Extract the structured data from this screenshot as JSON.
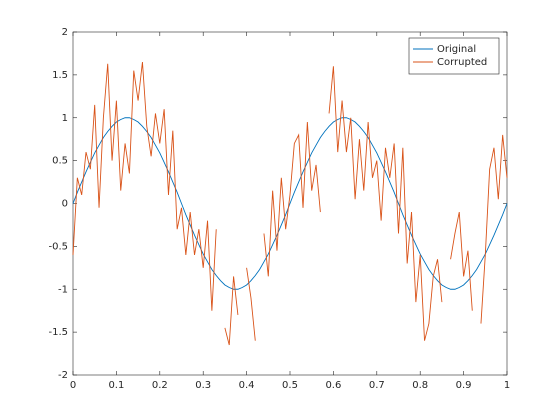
{
  "chart_data": {
    "type": "line",
    "x": [
      0,
      0.01,
      0.02,
      0.03,
      0.04,
      0.05,
      0.06,
      0.07,
      0.08,
      0.09,
      0.1,
      0.11,
      0.12,
      0.13,
      0.14,
      0.15,
      0.16,
      0.17,
      0.18,
      0.19,
      0.2,
      0.21,
      0.22,
      0.23,
      0.24,
      0.25,
      0.26,
      0.27,
      0.28,
      0.29,
      0.3,
      0.31,
      0.32,
      0.33,
      0.34,
      0.35,
      0.36,
      0.37,
      0.38,
      0.39,
      0.4,
      0.41,
      0.42,
      0.43,
      0.44,
      0.45,
      0.46,
      0.47,
      0.48,
      0.49,
      0.5,
      0.51,
      0.52,
      0.53,
      0.54,
      0.55,
      0.56,
      0.57,
      0.58,
      0.59,
      0.6,
      0.61,
      0.62,
      0.63,
      0.64,
      0.65,
      0.66,
      0.67,
      0.68,
      0.69,
      0.7,
      0.71,
      0.72,
      0.73,
      0.74,
      0.75,
      0.76,
      0.77,
      0.78,
      0.79,
      0.8,
      0.81,
      0.82,
      0.83,
      0.84,
      0.85,
      0.86,
      0.87,
      0.88,
      0.89,
      0.9,
      0.91,
      0.92,
      0.93,
      0.94,
      0.95,
      0.96,
      0.97,
      0.98,
      0.99,
      1
    ],
    "series": [
      {
        "name": "Original",
        "color": "#0072bd",
        "values": [
          0,
          0.13,
          0.25,
          0.37,
          0.48,
          0.59,
          0.68,
          0.77,
          0.84,
          0.9,
          0.95,
          0.98,
          1,
          1,
          0.98,
          0.95,
          0.9,
          0.84,
          0.77,
          0.68,
          0.59,
          0.48,
          0.37,
          0.25,
          0.13,
          0,
          -0.13,
          -0.25,
          -0.37,
          -0.48,
          -0.59,
          -0.68,
          -0.77,
          -0.84,
          -0.9,
          -0.95,
          -0.98,
          -1,
          -1,
          -0.98,
          -0.95,
          -0.9,
          -0.84,
          -0.77,
          -0.68,
          -0.59,
          -0.48,
          -0.37,
          -0.25,
          -0.13,
          0,
          0.13,
          0.25,
          0.37,
          0.48,
          0.59,
          0.68,
          0.77,
          0.84,
          0.9,
          0.95,
          0.98,
          1,
          1,
          0.98,
          0.95,
          0.9,
          0.84,
          0.77,
          0.68,
          0.59,
          0.48,
          0.37,
          0.25,
          0.13,
          0,
          -0.13,
          -0.25,
          -0.37,
          -0.48,
          -0.59,
          -0.68,
          -0.77,
          -0.84,
          -0.9,
          -0.95,
          -0.98,
          -1,
          -1,
          -0.98,
          -0.95,
          -0.9,
          -0.84,
          -0.77,
          -0.68,
          -0.59,
          -0.48,
          -0.37,
          -0.25,
          -0.13,
          0
        ]
      },
      {
        "name": "Corrupted",
        "color": "#d95319",
        "values": [
          -0.6,
          0.3,
          0.1,
          0.6,
          0.4,
          1.15,
          -0.05,
          1.0,
          1.63,
          0.5,
          1.2,
          0.15,
          0.7,
          0.35,
          1.55,
          1.2,
          1.65,
          0.9,
          0.55,
          1.05,
          0.7,
          1.1,
          0.1,
          0.85,
          -0.3,
          -0.05,
          -0.6,
          -0.1,
          -0.6,
          -0.3,
          -0.75,
          -0.2,
          -1.25,
          -0.3,
          null,
          -1.45,
          -1.65,
          -0.85,
          -1.3,
          null,
          -0.75,
          -1.1,
          -1.6,
          null,
          -0.35,
          -0.85,
          0.15,
          -0.55,
          0.3,
          -0.3,
          0.1,
          0.7,
          0.8,
          -0.05,
          0.95,
          0.15,
          0.45,
          -0.1,
          null,
          1.05,
          1.6,
          0.6,
          1.2,
          0.6,
          1.0,
          0.05,
          0.75,
          0.15,
          0.95,
          0.3,
          0.5,
          -0.2,
          0.65,
          0.3,
          0.7,
          -0.35,
          0.65,
          -0.7,
          -0.1,
          -1.15,
          -0.6,
          -1.6,
          -1.4,
          -0.85,
          -0.65,
          -1.15,
          null,
          -0.65,
          -0.35,
          -0.1,
          -0.85,
          -0.55,
          -1.25,
          null,
          -1.4,
          -0.6,
          0.4,
          0.65,
          0.05,
          0.8,
          0.3
        ]
      }
    ],
    "xlim": [
      0,
      1
    ],
    "xticks": [
      0,
      0.1,
      0.2,
      0.3,
      0.4,
      0.5,
      0.6,
      0.7,
      0.8,
      0.9,
      1
    ],
    "ylim": [
      -2,
      2
    ],
    "yticks": [
      -2,
      -1.5,
      -1,
      -0.5,
      0,
      0.5,
      1,
      1.5,
      2
    ],
    "grid": false,
    "legend": "northeast"
  }
}
